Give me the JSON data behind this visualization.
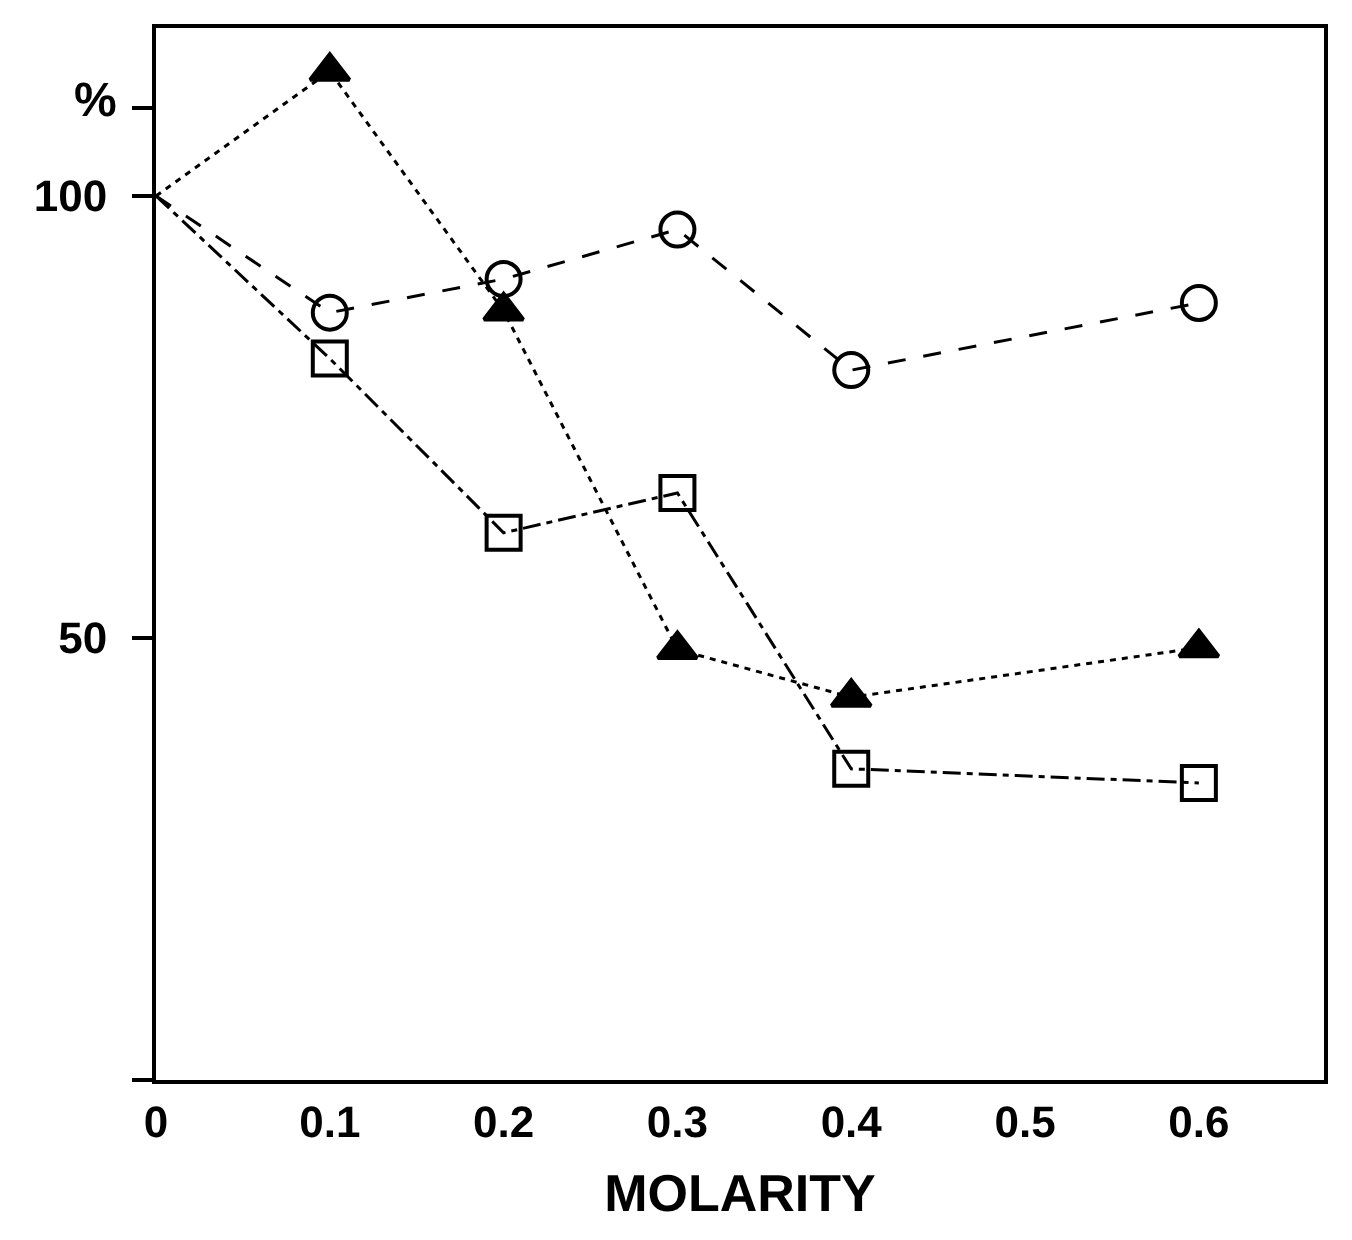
{
  "chart_data": {
    "type": "line",
    "xlabel": "MOLARITY",
    "ylabel": "%",
    "xlim": [
      0,
      0.672
    ],
    "ylim": [
      0,
      119
    ],
    "xticks": [
      0,
      0.1,
      0.2,
      0.3,
      0.4,
      0.5,
      0.6
    ],
    "yticks": [
      {
        "value": 0,
        "label": null
      },
      50,
      100,
      {
        "value": 110,
        "label": null
      }
    ],
    "series": [
      {
        "color": "#000000",
        "marker": "circle",
        "line_style": "dashed",
        "x": [
          0,
          0.1,
          0.2,
          0.3,
          0.4,
          0.6
        ],
        "values": [
          100,
          86.8,
          90.6,
          96.2,
          80.3,
          87.9
        ]
      },
      {
        "color": "#000000",
        "marker": "triangle",
        "line_style": "dotted",
        "x": [
          0,
          0.1,
          0.2,
          0.3,
          0.4,
          0.6
        ],
        "values": [
          100,
          114.1,
          87,
          48.7,
          43.3,
          48.9
        ]
      },
      {
        "color": "#000000",
        "marker": "square",
        "line_style": "dashdot",
        "x": [
          0,
          0.1,
          0.2,
          0.3,
          0.4,
          0.6
        ],
        "values": [
          100,
          81.6,
          61.9,
          66.4,
          35.2,
          33.6
        ]
      }
    ]
  }
}
